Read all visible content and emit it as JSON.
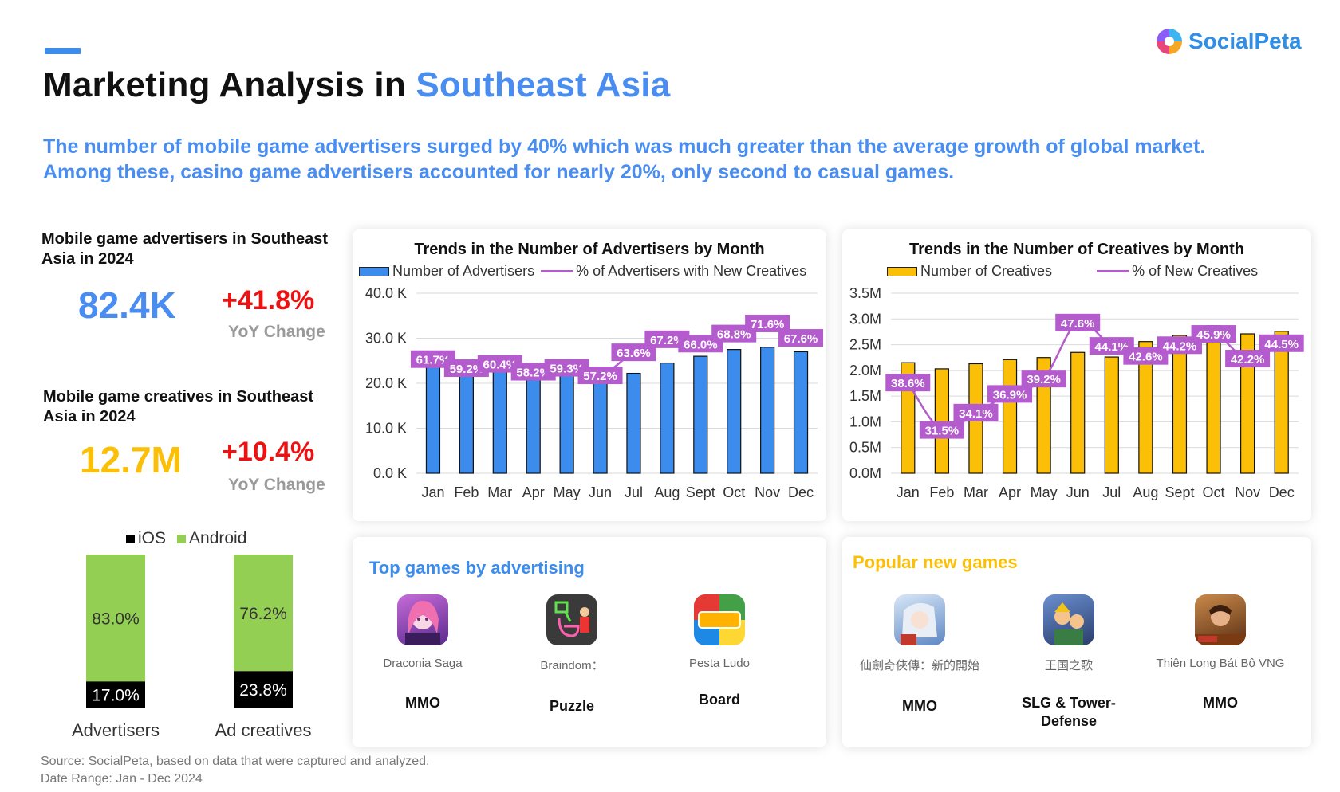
{
  "header": {
    "title_prefix": "Marketing Analysis in ",
    "title_highlight": "Southeast Asia",
    "subtitle_line1": "The number of mobile game advertisers surged by 40% which was much greater than the average growth of global market.",
    "subtitle_line2": "Among these, casino game advertisers accounted for nearly 20%, only second to casual games.",
    "logo_text": "SocialPeta"
  },
  "kpis": {
    "advertisers": {
      "label": "Mobile game advertisers in Southeast Asia in 2024",
      "value": "82.4K",
      "change": "+41.8%",
      "change_label": "YoY Change"
    },
    "creatives": {
      "label": "Mobile game creatives in Southeast Asia in 2024",
      "value": "12.7M",
      "change": "+10.4%",
      "change_label": "YoY Change"
    }
  },
  "colors": {
    "blue": "#3b8ced",
    "orange": "#fbbf08",
    "purple": "#b45ccd",
    "green": "#92cf52",
    "black": "#000000",
    "red": "#ee1111"
  },
  "chart_data": [
    {
      "type": "bar",
      "title": "Trends in the Number of Advertisers by Month",
      "categories": [
        "Jan",
        "Feb",
        "Mar",
        "Apr",
        "May",
        "Jun",
        "Jul",
        "Aug",
        "Sept",
        "Oct",
        "Nov",
        "Dec"
      ],
      "ylim": [
        0,
        40000
      ],
      "y_ticks": [
        "0.0 K",
        "10.0 K",
        "20.0 K",
        "30.0 K",
        "40.0 K"
      ],
      "series": [
        {
          "name": "Number of Advertisers",
          "type": "bar",
          "values": [
            24000,
            23300,
            24000,
            24500,
            24100,
            22700,
            22200,
            24500,
            26000,
            27500,
            28000,
            27000
          ]
        },
        {
          "name": "% of Advertisers with New Creatives",
          "type": "line",
          "values": [
            61.7,
            59.2,
            60.4,
            58.2,
            59.3,
            57.2,
            63.6,
            67.2,
            66.0,
            68.8,
            71.6,
            67.6
          ],
          "labels": [
            "61.7%",
            "59.2%",
            "60.4%",
            "58.2%",
            "59.3%",
            "57.2%",
            "63.6%",
            "67.2%",
            "66.0%",
            "68.8%",
            "71.6%",
            "67.6%"
          ]
        }
      ]
    },
    {
      "type": "bar",
      "title": "Trends in the Number of Creatives by Month",
      "categories": [
        "Jan",
        "Feb",
        "Mar",
        "Apr",
        "May",
        "Jun",
        "Jul",
        "Aug",
        "Sept",
        "Oct",
        "Nov",
        "Dec"
      ],
      "ylim": [
        0,
        3500000
      ],
      "y_ticks": [
        "0.0M",
        "0.5M",
        "1.0M",
        "1.5M",
        "2.0M",
        "2.5M",
        "3.0M",
        "3.5M"
      ],
      "series": [
        {
          "name": "Number of Creatives",
          "type": "bar",
          "values": [
            2150000,
            2030000,
            2130000,
            2210000,
            2250000,
            2350000,
            2260000,
            2560000,
            2680000,
            2870000,
            2710000,
            2760000
          ]
        },
        {
          "name": "% of New Creatives",
          "type": "line",
          "values": [
            38.6,
            31.5,
            34.1,
            36.9,
            39.2,
            47.6,
            44.1,
            42.6,
            44.2,
            45.9,
            42.2,
            44.5
          ],
          "labels": [
            "38.6%",
            "31.5%",
            "34.1%",
            "36.9%",
            "39.2%",
            "47.6%",
            "44.1%",
            "42.6%",
            "44.2%",
            "45.9%",
            "42.2%",
            "44.5%"
          ]
        }
      ]
    },
    {
      "type": "bar",
      "stacked": true,
      "categories": [
        "Advertisers",
        "Ad creatives"
      ],
      "series": [
        {
          "name": "iOS",
          "values": [
            17.0,
            23.8
          ],
          "labels": [
            "17.0%",
            "23.8%"
          ]
        },
        {
          "name": "Android",
          "values": [
            83.0,
            76.2
          ],
          "labels": [
            "83.0%",
            "76.2%"
          ]
        }
      ],
      "legend_position": "top"
    }
  ],
  "top_games": {
    "title": "Top games by advertising",
    "items": [
      {
        "name": "Draconia Saga",
        "genre": "MMO",
        "icon": "anime-girl-icon"
      },
      {
        "name": "Braindom：",
        "genre": "Puzzle",
        "icon": "puzzle-icon"
      },
      {
        "name": "Pesta Ludo",
        "genre": "Board",
        "icon": "ludo-board-icon"
      }
    ]
  },
  "new_games": {
    "title": "Popular new games",
    "items": [
      {
        "name": "仙劍奇俠傳：新的開始",
        "genre": "MMO",
        "icon": "swordsman-icon"
      },
      {
        "name": "王国之歌",
        "genre_line1": "SLG & Tower-",
        "genre_line2": "Defense",
        "icon": "kingdom-icon"
      },
      {
        "name": "Thiên Long Bát Bộ VNG",
        "genre": "MMO",
        "icon": "warrior-icon"
      }
    ]
  },
  "footer": {
    "source": "Source: SocialPeta, based on data that were captured and analyzed.",
    "date_range": "Date Range: Jan - Dec 2024"
  }
}
